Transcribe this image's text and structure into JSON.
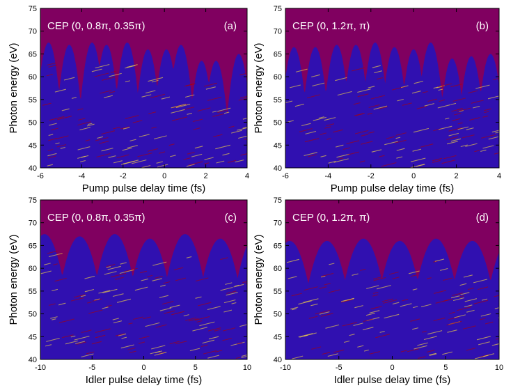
{
  "chart_data": [
    {
      "type": "heatmap",
      "panel_label": "(a)",
      "annotation": "CEP (0, 0.8π, 0.35π)",
      "xlabel": "Pump pulse delay time (fs)",
      "ylabel": "Photon energy (eV)",
      "xlim": [
        -6,
        4
      ],
      "ylim": [
        40,
        75
      ],
      "xticks": [
        -6,
        -4,
        -2,
        0,
        2,
        4
      ],
      "yticks": [
        40,
        45,
        50,
        55,
        60,
        65,
        70,
        75
      ],
      "colors": {
        "background": "#800060",
        "levels": [
          "#e00000",
          "#ff6a00",
          "#ffd000",
          "#00ee55",
          "#00e5ff",
          "#1040ff",
          "#3010b0"
        ]
      },
      "cutoff_peaks_x": [
        -5.6,
        -4.6,
        -3.5,
        -2.8,
        -1.8,
        -0.8,
        0.1,
        0.8,
        1.8,
        2.5,
        3.6
      ],
      "cutoff_peaks_ev": [
        67.5,
        67.0,
        67.5,
        67.0,
        67.5,
        66.0,
        66.0,
        67.0,
        63.5,
        63.5,
        65.0
      ]
    },
    {
      "type": "heatmap",
      "panel_label": "(b)",
      "annotation": "CEP (0, 1.2π, π)",
      "xlabel": "Pump pulse delay time (fs)",
      "ylabel": "Photon energy (eV)",
      "xlim": [
        -6,
        4
      ],
      "ylim": [
        40,
        75
      ],
      "xticks": [
        -6,
        -4,
        -2,
        0,
        2,
        4
      ],
      "yticks": [
        40,
        45,
        50,
        55,
        60,
        65,
        70,
        75
      ],
      "colors": {
        "background": "#800060",
        "levels": [
          "#e00000",
          "#ff6a00",
          "#ffd000",
          "#00ee55",
          "#00e5ff",
          "#1040ff",
          "#3010b0"
        ]
      },
      "cutoff_peaks_x": [
        -5.6,
        -4.6,
        -3.6,
        -2.7,
        -1.8,
        -0.9,
        0.0,
        0.8,
        1.8,
        2.7,
        3.6
      ],
      "cutoff_peaks_ev": [
        66.5,
        66.5,
        67.0,
        67.0,
        67.5,
        66.5,
        66.0,
        67.5,
        64.0,
        64.5,
        65.0
      ]
    },
    {
      "type": "heatmap",
      "panel_label": "(c)",
      "annotation": "CEP (0, 0.8π, 0.35π)",
      "xlabel": "Idler pulse delay time (fs)",
      "ylabel": "Photon energy (eV)",
      "xlim": [
        -10,
        10
      ],
      "ylim": [
        40,
        75
      ],
      "xticks": [
        -10,
        -5,
        0,
        5,
        10
      ],
      "yticks": [
        40,
        45,
        50,
        55,
        60,
        65,
        70,
        75
      ],
      "colors": {
        "background": "#800060",
        "levels": [
          "#e00000",
          "#ff6a00",
          "#ffd000",
          "#00ee55",
          "#00e5ff",
          "#1040ff",
          "#3010b0"
        ]
      },
      "cutoff_peaks_x": [
        -9.6,
        -6.2,
        -2.8,
        0.6,
        4.0,
        7.4,
        10.8
      ],
      "cutoff_peaks_ev": [
        67.5,
        67.0,
        67.5,
        66.5,
        67.5,
        66.5,
        67.0
      ]
    },
    {
      "type": "heatmap",
      "panel_label": "(d)",
      "annotation": "CEP (0, 1.2π, π)",
      "xlabel": "Idler pulse delay time (fs)",
      "ylabel": "Photon energy (eV)",
      "xlim": [
        -10,
        10
      ],
      "ylim": [
        40,
        75
      ],
      "xticks": [
        -10,
        -5,
        0,
        5,
        10
      ],
      "yticks": [
        40,
        45,
        50,
        55,
        60,
        65,
        70,
        75
      ],
      "colors": {
        "background": "#800060",
        "levels": [
          "#e00000",
          "#ff6a00",
          "#ffd000",
          "#00ee55",
          "#00e5ff",
          "#1040ff",
          "#3010b0"
        ]
      },
      "cutoff_peaks_x": [
        -9.6,
        -6.1,
        -2.7,
        0.7,
        4.1,
        7.5,
        10.9
      ],
      "cutoff_peaks_ev": [
        66.0,
        66.0,
        66.5,
        66.0,
        66.5,
        66.0,
        66.0
      ]
    }
  ]
}
